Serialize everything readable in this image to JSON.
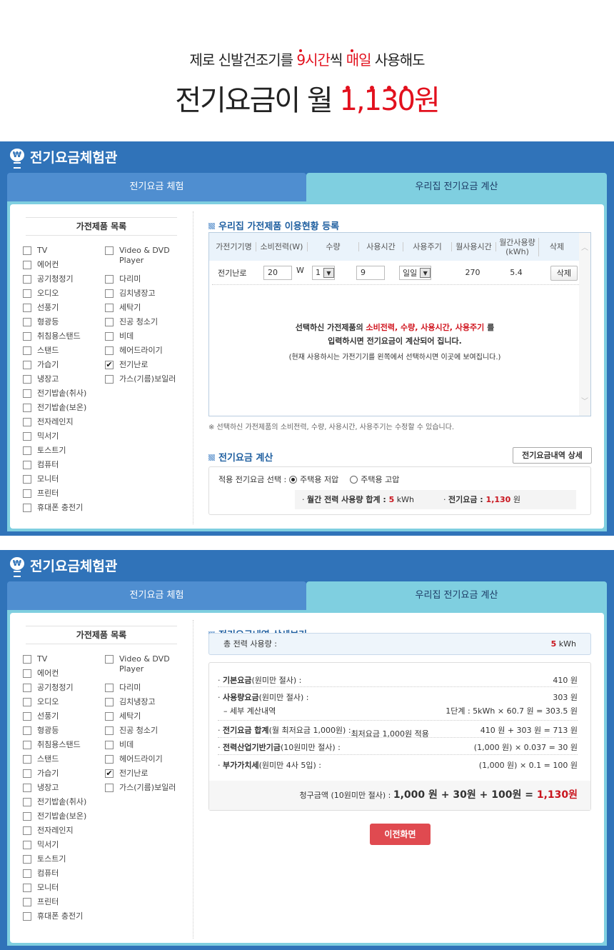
{
  "hero": {
    "line1_pre": "제로 신발건조기를 ",
    "line1_hl1": "9시간",
    "line1_mid": "씩 ",
    "line1_hl2": "매일",
    "line1_post": " 사용해도",
    "line2_pre": "전기요금이 월 ",
    "line2_amount": "1,130원"
  },
  "panel": {
    "title": "전기요금체험관",
    "tab1": "전기요금 체험",
    "tab2": "우리집 전기요금 계산",
    "list_title": "가전제품 목록"
  },
  "appliances_left": [
    {
      "label": "TV",
      "checked": false
    },
    {
      "label": "에어컨",
      "checked": false
    },
    {
      "label": "공기청정기",
      "checked": false
    },
    {
      "label": "오디오",
      "checked": false
    },
    {
      "label": "선풍기",
      "checked": false
    },
    {
      "label": "형광등",
      "checked": false
    },
    {
      "label": "취침용스탠드",
      "checked": false
    },
    {
      "label": "스탠드",
      "checked": false
    },
    {
      "label": "가습기",
      "checked": false
    },
    {
      "label": "냉장고",
      "checked": false
    },
    {
      "label": "전기밥솥(취사)",
      "checked": false
    },
    {
      "label": "전기밥솥(보온)",
      "checked": false
    },
    {
      "label": "전자레인지",
      "checked": false
    },
    {
      "label": "믹서기",
      "checked": false
    },
    {
      "label": "토스트기",
      "checked": false
    },
    {
      "label": "컴퓨터",
      "checked": false
    },
    {
      "label": "모니터",
      "checked": false
    },
    {
      "label": "프린터",
      "checked": false
    },
    {
      "label": "휴대폰 충전기",
      "checked": false
    }
  ],
  "appliances_right": [
    {
      "label": "Video & DVD Player",
      "checked": false
    },
    {
      "label": "다리미",
      "checked": false
    },
    {
      "label": "김치냉장고",
      "checked": false
    },
    {
      "label": "세탁기",
      "checked": false
    },
    {
      "label": "진공 청소기",
      "checked": false
    },
    {
      "label": "비데",
      "checked": false
    },
    {
      "label": "헤어드라이기",
      "checked": false
    },
    {
      "label": "전기난로",
      "checked": true
    },
    {
      "label": "가스(기름)보일러",
      "checked": false
    }
  ],
  "register": {
    "title": "우리집 가전제품 이용현황 등록",
    "columns": [
      "가전기기명",
      "소비전력(W)",
      "수량",
      "사용시간",
      "사용주기",
      "월사용시간",
      "월간사용량 (kWh)",
      "삭제"
    ],
    "row": {
      "name": "전기난로",
      "power": "20",
      "unit": "W",
      "qty": "1",
      "hours": "9",
      "cycle": "일일",
      "month_hours": "270",
      "kwh": "5.4",
      "delete": "삭제"
    },
    "msg1_pre": "선택하신 가전제품의 ",
    "msg1_hl": "소비전력, 수량, 사용시간, 사용주기",
    "msg1_post": " 를",
    "msg2": "입력하시면 전기요금이 계산되어 집니다.",
    "msg3": "(현재 사용하시는 가전기기를 왼쪽에서 선택하시면 이곳에 보여집니다.)",
    "note": "※ 선택하신 가전제품의 소비전력, 수량, 사용시간, 사용주기는 수정할 수 있습니다."
  },
  "calc": {
    "title": "전기요금 계산",
    "detail_button": "전기요금내역 상세",
    "select_label": "적용 전기요금 선택 :",
    "opt1": "주택용 저압",
    "opt2": "주택용 고압",
    "selected": "주택용 저압",
    "usage_label": "월간 전력 사용량 합계 : ",
    "usage_value": "5",
    "usage_unit": " kWh",
    "fee_label": "전기요금 : ",
    "fee_value": "1,130",
    "fee_unit": " 원"
  },
  "detail": {
    "title": "전기요금내역 상세보기",
    "total_label": "총 전력 사용량 :",
    "total_value": "5",
    "total_unit": " kWh",
    "rows": [
      {
        "label_b": "기본요금",
        "label": "(원미만 절사) :",
        "value": "410 원"
      },
      {
        "label_b": "사용량요금",
        "label": "(원미만 절사) :",
        "value": "303 원"
      },
      {
        "label_b": "",
        "label": "– 세부 계산내역",
        "value": "1단계 : 5kWh × 60.7 원 = 303.5 원"
      },
      {
        "label_b": "전기요금 합계",
        "label": "(월 최저요금 1,000원) :",
        "extra": "최저요금 1,000원 적용",
        "value": "410 원 + 303 원 = 713 원"
      },
      {
        "label_b": "전력산업기반기금",
        "label": "(10원미만 절사) :",
        "value": "(1,000 원) × 0.037 = 30 원"
      },
      {
        "label_b": "부가가치세",
        "label": "(원미만 4사 5입) :",
        "value": "(1,000 원) × 0.1 = 100 원"
      }
    ],
    "bill_label": "청구금액 (10원미만 절사) : ",
    "bill_formula": "1,000 원 + 30원 + 100원 = ",
    "bill_total": "1,130원",
    "back_button": "이전화면"
  },
  "colors": {
    "panel": "#3073b9",
    "accent_red": "#e2101d",
    "tab_active": "#7fcfe0"
  }
}
